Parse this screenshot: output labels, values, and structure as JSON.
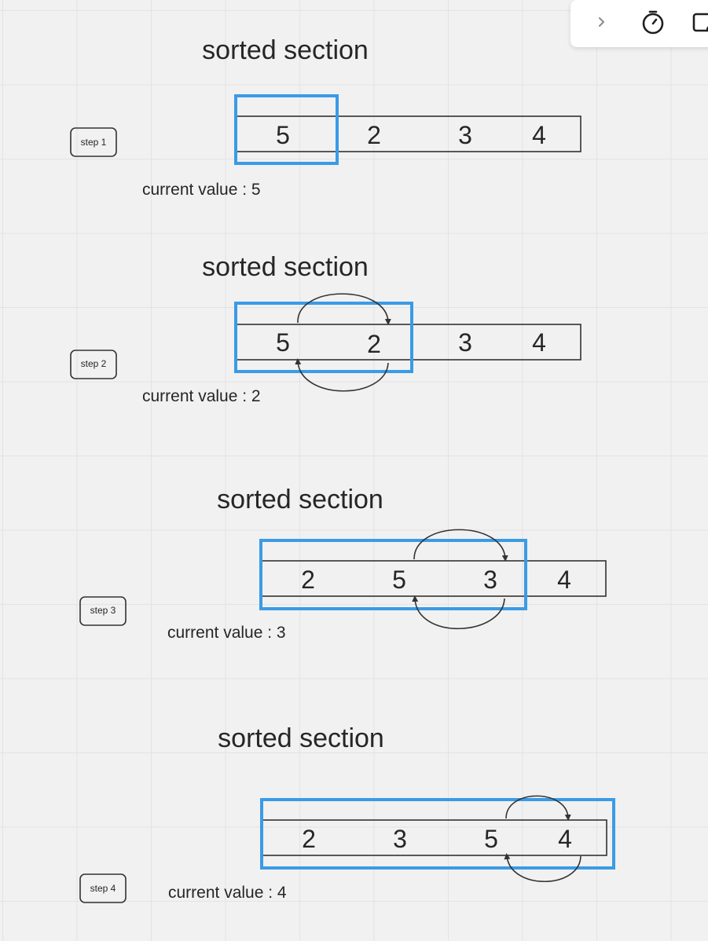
{
  "steps": [
    {
      "title": "sorted section",
      "step_label": "step 1",
      "current_value": "current value : 5",
      "values": [
        "5",
        "2",
        "3",
        "4"
      ]
    },
    {
      "title": "sorted section",
      "step_label": "step 2",
      "current_value": "current value : 2",
      "values": [
        "5",
        "2",
        "3",
        "4"
      ]
    },
    {
      "title": "sorted section",
      "step_label": "step 3",
      "current_value": "current value : 3",
      "values": [
        "2",
        "5",
        "3",
        "4"
      ]
    },
    {
      "title": "sorted section",
      "step_label": "step 4",
      "current_value": "current value : 4",
      "values": [
        "2",
        "3",
        "5",
        "4"
      ]
    }
  ],
  "colors": {
    "highlight": "#3a9be6",
    "stroke": "#333333",
    "text": "#262626"
  },
  "toolbar": {
    "icons": [
      "chevron-right-icon",
      "timer-icon",
      "screen-share-icon"
    ]
  }
}
